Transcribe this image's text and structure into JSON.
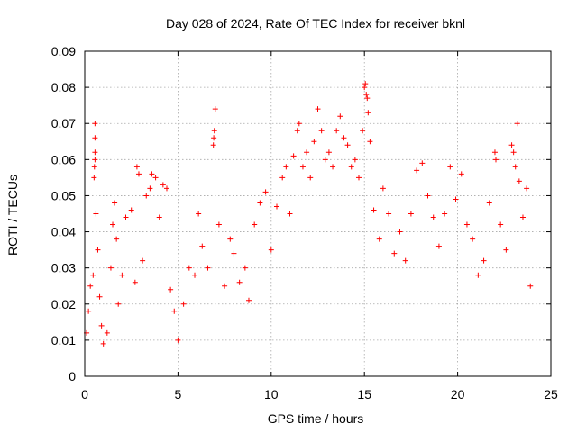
{
  "chart_data": {
    "type": "scatter",
    "title": "Day 028 of 2024, Rate Of TEC Index for receiver bknl",
    "xlabel": "GPS time / hours",
    "ylabel": "ROTI / TECUs",
    "xlim": [
      0,
      25
    ],
    "ylim": [
      0,
      0.09
    ],
    "x_ticks": [
      0,
      5,
      10,
      15,
      20,
      25
    ],
    "x_tick_labels": [
      "0",
      "5",
      "10",
      "15",
      "20",
      "25"
    ],
    "y_ticks": [
      0,
      0.01,
      0.02,
      0.03,
      0.04,
      0.05,
      0.06,
      0.07,
      0.08,
      0.09
    ],
    "y_tick_labels": [
      "0",
      "0.01",
      "0.02",
      "0.03",
      "0.04",
      "0.05",
      "0.06",
      "0.07",
      "0.08",
      "0.09"
    ],
    "grid": true,
    "marker": "plus",
    "color": "#ff0000",
    "series": [
      {
        "points": [
          [
            0.1,
            0.012
          ],
          [
            0.2,
            0.018
          ],
          [
            0.3,
            0.025
          ],
          [
            0.45,
            0.028
          ],
          [
            0.5,
            0.055
          ],
          [
            0.52,
            0.058
          ],
          [
            0.55,
            0.06
          ],
          [
            0.55,
            0.062
          ],
          [
            0.55,
            0.066
          ],
          [
            0.55,
            0.07
          ],
          [
            0.6,
            0.045
          ],
          [
            0.7,
            0.035
          ],
          [
            0.8,
            0.022
          ],
          [
            0.9,
            0.014
          ],
          [
            1.0,
            0.009
          ],
          [
            1.2,
            0.012
          ],
          [
            1.4,
            0.03
          ],
          [
            1.5,
            0.042
          ],
          [
            1.6,
            0.048
          ],
          [
            1.7,
            0.038
          ],
          [
            1.8,
            0.02
          ],
          [
            2.0,
            0.028
          ],
          [
            2.2,
            0.044
          ],
          [
            2.5,
            0.046
          ],
          [
            2.7,
            0.026
          ],
          [
            2.8,
            0.058
          ],
          [
            2.9,
            0.056
          ],
          [
            3.1,
            0.032
          ],
          [
            3.3,
            0.05
          ],
          [
            3.5,
            0.052
          ],
          [
            3.6,
            0.056
          ],
          [
            3.8,
            0.055
          ],
          [
            4.0,
            0.044
          ],
          [
            4.2,
            0.053
          ],
          [
            4.4,
            0.052
          ],
          [
            4.6,
            0.024
          ],
          [
            4.8,
            0.018
          ],
          [
            5.0,
            0.01
          ],
          [
            5.3,
            0.02
          ],
          [
            5.6,
            0.03
          ],
          [
            5.9,
            0.028
          ],
          [
            6.1,
            0.045
          ],
          [
            6.3,
            0.036
          ],
          [
            6.6,
            0.03
          ],
          [
            6.9,
            0.064
          ],
          [
            6.92,
            0.066
          ],
          [
            6.95,
            0.068
          ],
          [
            7.0,
            0.074
          ],
          [
            7.2,
            0.042
          ],
          [
            7.5,
            0.025
          ],
          [
            7.8,
            0.038
          ],
          [
            8.0,
            0.034
          ],
          [
            8.3,
            0.026
          ],
          [
            8.6,
            0.03
          ],
          [
            8.8,
            0.021
          ],
          [
            9.1,
            0.042
          ],
          [
            9.4,
            0.048
          ],
          [
            9.7,
            0.051
          ],
          [
            10.0,
            0.035
          ],
          [
            10.3,
            0.047
          ],
          [
            10.6,
            0.055
          ],
          [
            10.8,
            0.058
          ],
          [
            11.0,
            0.045
          ],
          [
            11.2,
            0.061
          ],
          [
            11.4,
            0.068
          ],
          [
            11.5,
            0.07
          ],
          [
            11.7,
            0.058
          ],
          [
            11.9,
            0.062
          ],
          [
            12.1,
            0.055
          ],
          [
            12.3,
            0.065
          ],
          [
            12.5,
            0.074
          ],
          [
            12.7,
            0.068
          ],
          [
            12.9,
            0.06
          ],
          [
            13.1,
            0.062
          ],
          [
            13.3,
            0.058
          ],
          [
            13.5,
            0.068
          ],
          [
            13.7,
            0.072
          ],
          [
            13.9,
            0.066
          ],
          [
            14.1,
            0.064
          ],
          [
            14.3,
            0.058
          ],
          [
            14.5,
            0.06
          ],
          [
            14.7,
            0.055
          ],
          [
            14.9,
            0.068
          ],
          [
            15.0,
            0.08
          ],
          [
            15.05,
            0.081
          ],
          [
            15.1,
            0.078
          ],
          [
            15.15,
            0.077
          ],
          [
            15.2,
            0.073
          ],
          [
            15.3,
            0.065
          ],
          [
            15.5,
            0.046
          ],
          [
            15.8,
            0.038
          ],
          [
            16.0,
            0.052
          ],
          [
            16.3,
            0.045
          ],
          [
            16.6,
            0.034
          ],
          [
            16.9,
            0.04
          ],
          [
            17.2,
            0.032
          ],
          [
            17.5,
            0.045
          ],
          [
            17.8,
            0.057
          ],
          [
            18.1,
            0.059
          ],
          [
            18.4,
            0.05
          ],
          [
            18.7,
            0.044
          ],
          [
            19.0,
            0.036
          ],
          [
            19.3,
            0.045
          ],
          [
            19.6,
            0.058
          ],
          [
            19.9,
            0.049
          ],
          [
            20.2,
            0.056
          ],
          [
            20.5,
            0.042
          ],
          [
            20.8,
            0.038
          ],
          [
            21.1,
            0.028
          ],
          [
            21.4,
            0.032
          ],
          [
            21.7,
            0.048
          ],
          [
            22.0,
            0.062
          ],
          [
            22.05,
            0.06
          ],
          [
            22.3,
            0.042
          ],
          [
            22.6,
            0.035
          ],
          [
            22.9,
            0.064
          ],
          [
            23.0,
            0.062
          ],
          [
            23.1,
            0.058
          ],
          [
            23.2,
            0.07
          ],
          [
            23.3,
            0.054
          ],
          [
            23.5,
            0.044
          ],
          [
            23.7,
            0.052
          ],
          [
            23.9,
            0.025
          ]
        ]
      }
    ]
  }
}
